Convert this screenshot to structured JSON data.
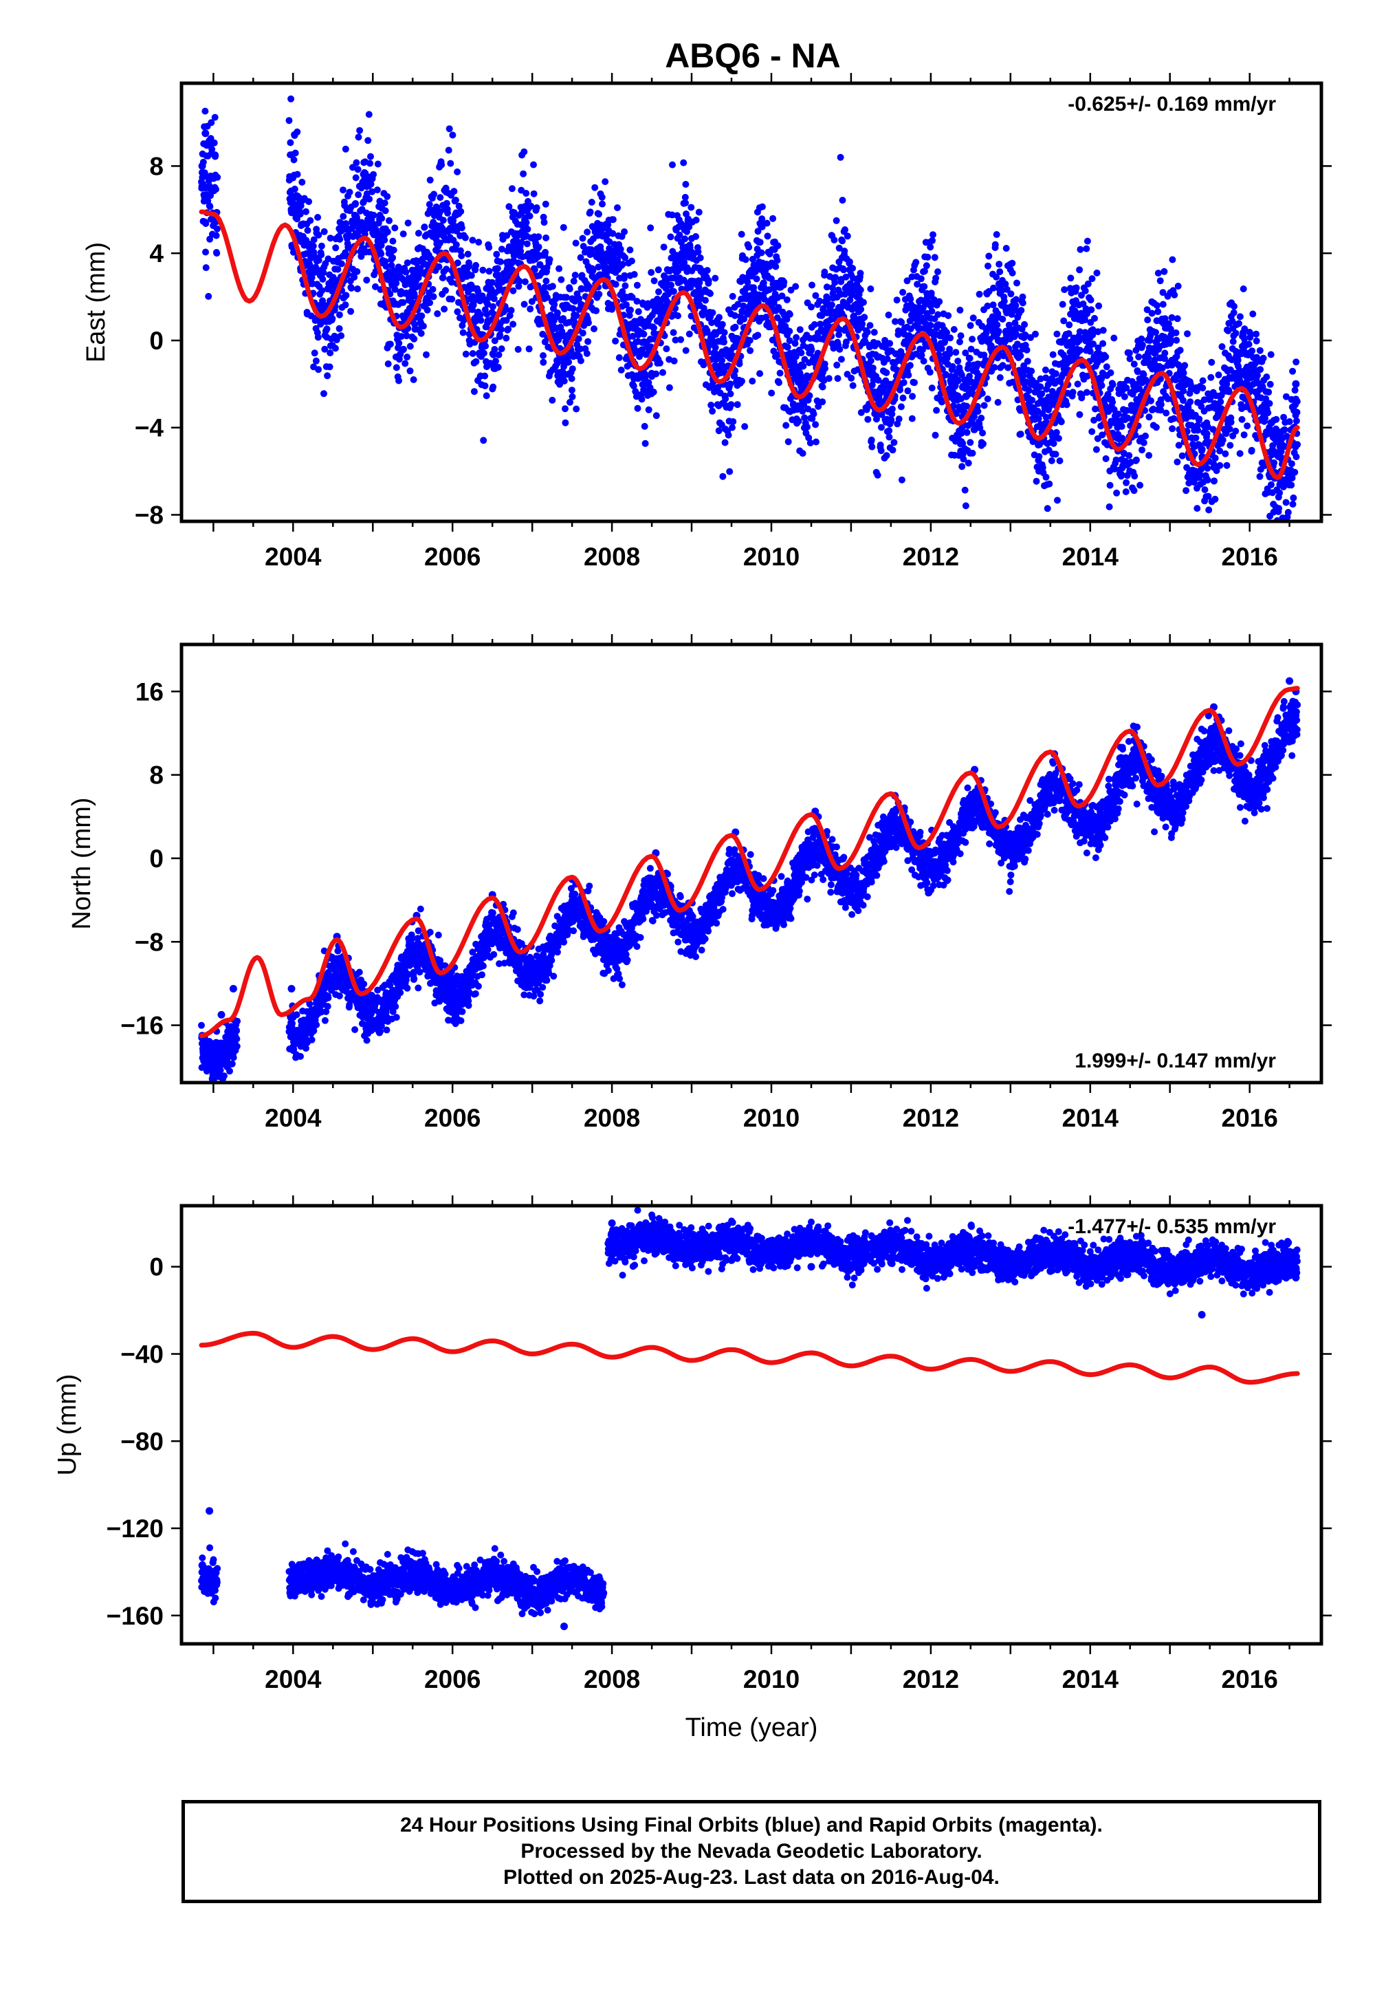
{
  "title": "ABQ6 - NA",
  "colors": {
    "final_orbits": "#0000ff",
    "model_fit": "#ee1111",
    "frame": "#000000"
  },
  "footer": {
    "line1": "24 Hour Positions Using Final Orbits (blue) and Rapid Orbits (magenta).",
    "line2": "Processed by the Nevada Geodetic Laboratory.",
    "line3": "Plotted on 2025-Aug-23. Last data on 2016-Aug-04."
  },
  "chart_data": [
    {
      "type": "scatter",
      "component": "east",
      "ylabel": "East (mm)",
      "xlabel": "",
      "xlim": [
        2002.6,
        2016.9
      ],
      "ylim": [
        -8.3,
        11.8
      ],
      "xticks": [
        2004,
        2006,
        2008,
        2010,
        2012,
        2014,
        2016
      ],
      "yticks": [
        -8,
        -4,
        0,
        4,
        8
      ],
      "ytick_labels": [
        "−8",
        "−4",
        "0",
        "4",
        "8"
      ],
      "rate_text": "-0.625+/- 0.169 mm/yr",
      "rate_position": "top-right",
      "grid": false,
      "series": [
        {
          "role": "daily positions (final orbits)",
          "style": "dots",
          "segments": [
            [
              2002.85,
              2003.05
            ],
            [
              2003.95,
              2016.6
            ]
          ],
          "trend": {
            "t0": 2002.85,
            "v0": 5.0,
            "slope": -0.625,
            "annual_amp": 2.4,
            "annual_peak": 2002.9,
            "noise": 1.6
          },
          "x": [
            2002.86,
            2002.9,
            2002.95,
            2003.02,
            2003.98,
            2004.2,
            2004.4,
            2004.85,
            2005.4,
            2005.85,
            2006.4,
            2006.85,
            2007.4,
            2007.85,
            2008.4,
            2008.8,
            2009.4,
            2009.85,
            2010.4,
            2010.85,
            2011.4,
            2011.85,
            2012.4,
            2012.85,
            2013.4,
            2013.85,
            2014.4,
            2014.85,
            2015.4,
            2015.85,
            2016.4,
            2016.58
          ],
          "y": [
            8.0,
            9.5,
            7.0,
            8.5,
            6.0,
            3.5,
            1.0,
            4.5,
            0.5,
            4.0,
            0.0,
            3.5,
            -1.0,
            3.0,
            -1.5,
            3.5,
            -2.0,
            2.0,
            -2.5,
            1.5,
            -3.0,
            1.5,
            -3.5,
            0.0,
            -4.0,
            0.0,
            -4.5,
            -1.5,
            -5.0,
            -1.5,
            -6.0,
            -2.0
          ]
        },
        {
          "role": "model fit",
          "style": "line",
          "x": [
            2002.85,
            2003.0,
            2003.45,
            2003.9,
            2004.35,
            2004.9,
            2005.35,
            2005.9,
            2006.35,
            2006.9,
            2007.35,
            2007.9,
            2008.35,
            2008.9,
            2009.35,
            2009.9,
            2010.35,
            2010.9,
            2011.35,
            2011.9,
            2012.35,
            2012.9,
            2013.35,
            2013.9,
            2014.35,
            2014.9,
            2015.35,
            2015.9,
            2016.35,
            2016.6
          ],
          "y": [
            5.9,
            5.8,
            1.8,
            5.3,
            1.1,
            4.7,
            0.6,
            4.0,
            0.0,
            3.4,
            -0.6,
            2.8,
            -1.3,
            2.2,
            -1.9,
            1.6,
            -2.6,
            1.0,
            -3.2,
            0.3,
            -3.8,
            -0.3,
            -4.5,
            -0.9,
            -5.0,
            -1.5,
            -5.7,
            -2.2,
            -6.3,
            -4.0
          ]
        }
      ]
    },
    {
      "type": "scatter",
      "component": "north",
      "ylabel": "North (mm)",
      "xlabel": "",
      "xlim": [
        2002.6,
        2016.9
      ],
      "ylim": [
        -21.5,
        20.5
      ],
      "xticks": [
        2004,
        2006,
        2008,
        2010,
        2012,
        2014,
        2016
      ],
      "yticks": [
        -16,
        -8,
        0,
        8,
        16
      ],
      "ytick_labels": [
        "−16",
        "−8",
        "0",
        "8",
        "16"
      ],
      "rate_text": "1.999+/- 0.147 mm/yr",
      "rate_position": "bottom-right",
      "grid": false,
      "series": [
        {
          "role": "daily positions (final orbits)",
          "style": "dots",
          "segments": [
            [
              2002.85,
              2003.3
            ],
            [
              2003.95,
              2016.6
            ]
          ],
          "trend": {
            "t0": 2002.85,
            "v0": -17.0,
            "slope": 1.999,
            "annual_amp": 2.6,
            "annual_peak": 2003.55,
            "noise": 1.1
          },
          "x": [
            2002.86,
            2002.95,
            2003.1,
            2003.25,
            2003.98,
            2004.55,
            2004.9,
            2005.55,
            2005.9,
            2006.5,
            2006.9,
            2007.5,
            2007.9,
            2008.55,
            2008.9,
            2009.55,
            2009.9,
            2010.55,
            2010.9,
            2011.55,
            2011.9,
            2012.55,
            2012.9,
            2013.55,
            2013.9,
            2014.55,
            2014.9,
            2015.55,
            2015.9,
            2016.5,
            2016.58
          ],
          "y": [
            -17.0,
            -18.5,
            -15.0,
            -12.5,
            -12.5,
            -7.5,
            -13.0,
            -5.5,
            -11.0,
            -3.5,
            -9.0,
            -2.0,
            -7.0,
            0.5,
            -5.0,
            2.5,
            -3.0,
            4.5,
            -1.0,
            6.0,
            1.0,
            8.5,
            3.0,
            10.0,
            5.0,
            12.0,
            7.0,
            14.5,
            9.0,
            17.0,
            16.0
          ]
        },
        {
          "role": "model fit",
          "style": "line",
          "x": [
            2002.85,
            2003.2,
            2003.55,
            2003.85,
            2004.2,
            2004.55,
            2004.85,
            2005.55,
            2005.85,
            2006.5,
            2006.85,
            2007.5,
            2007.85,
            2008.5,
            2008.85,
            2009.5,
            2009.85,
            2010.5,
            2010.85,
            2011.5,
            2011.85,
            2012.5,
            2012.85,
            2013.5,
            2013.85,
            2014.5,
            2014.85,
            2015.5,
            2015.85,
            2016.5,
            2016.6
          ],
          "y": [
            -17.0,
            -15.5,
            -9.5,
            -15.0,
            -13.5,
            -7.8,
            -13.0,
            -5.8,
            -11.0,
            -3.8,
            -9.0,
            -1.8,
            -7.0,
            0.2,
            -5.0,
            2.2,
            -3.0,
            4.2,
            -1.0,
            6.2,
            1.0,
            8.2,
            3.0,
            10.2,
            5.0,
            12.2,
            7.0,
            14.2,
            9.0,
            16.2,
            16.3
          ]
        }
      ]
    },
    {
      "type": "scatter",
      "component": "up",
      "ylabel": "Up (mm)",
      "xlabel": "Time (year)",
      "xlim": [
        2002.6,
        2016.9
      ],
      "ylim": [
        -173,
        28
      ],
      "xticks": [
        2004,
        2006,
        2008,
        2010,
        2012,
        2014,
        2016
      ],
      "yticks": [
        -160,
        -120,
        -80,
        -40,
        0
      ],
      "ytick_labels": [
        "−160",
        "−120",
        "−80",
        "−40",
        "0"
      ],
      "rate_text": "-1.477+/- 0.535 mm/yr",
      "rate_position": "top-right",
      "grid": false,
      "series": [
        {
          "role": "daily positions before 2008 antenna offset",
          "style": "dots",
          "segments": [
            [
              2002.85,
              2003.05
            ],
            [
              2003.95,
              2007.9
            ]
          ],
          "trend": {
            "t0": 2002.85,
            "v0": -140.0,
            "slope": -1.477,
            "annual_amp": 3.0,
            "annual_peak": 2003.5,
            "noise": 4.0
          },
          "x": [
            2002.86,
            2002.95,
            2003.02,
            2004.0,
            2004.5,
            2005.0,
            2005.5,
            2006.0,
            2006.5,
            2007.0,
            2007.4,
            2007.85
          ],
          "y": [
            -137.0,
            -112.0,
            -145.0,
            -140.0,
            -143.0,
            -148.0,
            -147.0,
            -146.0,
            -145.0,
            -150.0,
            -165.0,
            -148.0
          ]
        },
        {
          "role": "daily positions after 2008 antenna offset",
          "style": "dots",
          "segments": [
            [
              2007.95,
              2011.2
            ],
            [
              2011.25,
              2016.6
            ]
          ],
          "trend": {
            "t0": 2008.0,
            "v0": 12.0,
            "slope": -1.477,
            "annual_amp": 3.0,
            "annual_peak": 2008.5,
            "noise": 4.0
          },
          "x": [
            2008.0,
            2008.5,
            2009.0,
            2009.5,
            2010.0,
            2010.5,
            2011.0,
            2011.5,
            2012.0,
            2012.5,
            2013.0,
            2013.5,
            2014.0,
            2014.5,
            2015.0,
            2015.4,
            2015.8,
            2016.58
          ],
          "y": [
            20.0,
            10.0,
            5.0,
            3.0,
            2.0,
            0.0,
            0.0,
            2.0,
            0.0,
            0.0,
            0.0,
            -2.0,
            0.0,
            0.0,
            -5.0,
            -22.0,
            5.0,
            -5.0
          ]
        },
        {
          "role": "model fit",
          "style": "line",
          "x": [
            2002.85,
            2003.5,
            2004.0,
            2004.5,
            2005.0,
            2005.5,
            2006.0,
            2006.5,
            2007.0,
            2007.5,
            2008.0,
            2008.5,
            2009.0,
            2009.5,
            2010.0,
            2010.5,
            2011.0,
            2011.5,
            2012.0,
            2012.5,
            2013.0,
            2013.5,
            2014.0,
            2014.5,
            2015.0,
            2015.5,
            2016.0,
            2016.6
          ],
          "y": [
            -36.0,
            -30.5,
            -37.0,
            -32.0,
            -38.0,
            -33.0,
            -39.0,
            -34.0,
            -40.0,
            -35.5,
            -41.5,
            -37.0,
            -43.0,
            -38.0,
            -44.0,
            -39.5,
            -45.5,
            -41.0,
            -47.0,
            -42.5,
            -48.0,
            -43.5,
            -49.5,
            -45.0,
            -51.0,
            -46.0,
            -53.0,
            -49.0
          ]
        }
      ]
    }
  ]
}
